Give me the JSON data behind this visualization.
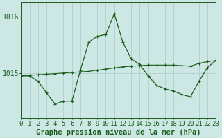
{
  "title": "Graphe pression niveau de la mer (hPa)",
  "background_color": "#cde8e4",
  "grid_color": "#b0d0cc",
  "line_color": "#1a5c1a",
  "hours": [
    0,
    1,
    2,
    3,
    4,
    5,
    6,
    7,
    8,
    9,
    10,
    11,
    12,
    13,
    14,
    15,
    16,
    17,
    18,
    19,
    20,
    21,
    22,
    23
  ],
  "pressure": [
    1014.95,
    1014.95,
    1014.85,
    1014.65,
    1014.45,
    1014.5,
    1014.5,
    1015.05,
    1015.55,
    1015.65,
    1015.68,
    1016.05,
    1015.55,
    1015.25,
    1015.15,
    1014.95,
    1014.78,
    1014.72,
    1014.68,
    1014.62,
    1014.58,
    1014.85,
    1015.1,
    1015.22
  ],
  "trend": [
    1014.95,
    1014.96,
    1014.97,
    1014.98,
    1014.99,
    1015.0,
    1015.01,
    1015.02,
    1015.03,
    1015.05,
    1015.07,
    1015.09,
    1015.11,
    1015.12,
    1015.13,
    1015.14,
    1015.14,
    1015.14,
    1015.14,
    1015.13,
    1015.12,
    1015.17,
    1015.2,
    1015.22
  ],
  "yticks": [
    1015,
    1016
  ],
  "ylim": [
    1014.2,
    1016.25
  ],
  "xlim": [
    0,
    23
  ],
  "title_fontsize": 7.5,
  "tick_fontsize": 6.5
}
